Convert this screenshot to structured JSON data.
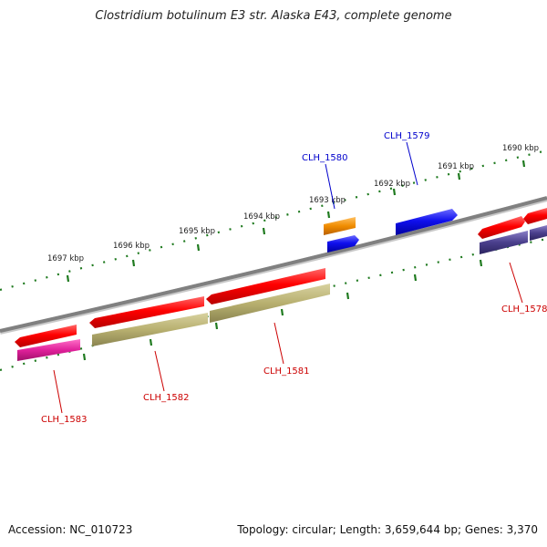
{
  "map_title": "Clostridium botulinum E3 str. Alaska E43, complete genome",
  "footer": {
    "accession": "Accession: NC_010723",
    "stats": "Topology: circular; Length: 3,659,644 bp; Genes: 3,370"
  },
  "scale_labels": [
    "1690 kbp",
    "1691 kbp",
    "1692 kbp",
    "1693 kbp",
    "1694 kbp",
    "1695 kbp",
    "1696 kbp",
    "1697 kbp"
  ],
  "genes": [
    {
      "locus": "CLH_1583",
      "strand": "-",
      "label_color": "#cc0000"
    },
    {
      "locus": "CLH_1582",
      "strand": "-",
      "label_color": "#cc0000"
    },
    {
      "locus": "CLH_1581",
      "strand": "-",
      "label_color": "#cc0000"
    },
    {
      "locus": "CLH_1580",
      "strand": "+",
      "label_color": "#0000cc"
    },
    {
      "locus": "CLH_1579",
      "strand": "+",
      "label_color": "#0000cc"
    },
    {
      "locus": "CLH_1578",
      "strand": "-",
      "label_color": "#cc0000"
    }
  ],
  "colors": {
    "backbone": "#888888",
    "ticks": "#1f7a1f",
    "cds_forward": "#1a1aee",
    "cds_reverse": "#ee1111",
    "cog_orange": "#f08c00",
    "cog_khaki": "#b8b070",
    "cog_magenta": "#e0209a",
    "cog_purple": "#4a3f8c"
  }
}
